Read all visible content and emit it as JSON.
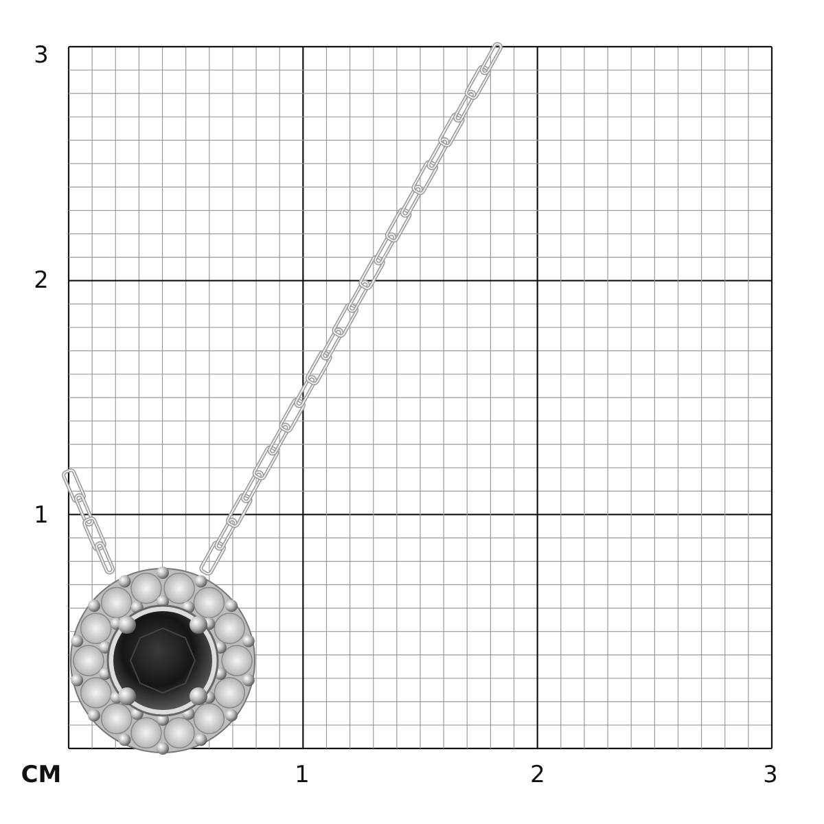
{
  "scale": {
    "unit_label": "CM",
    "x_ticks": [
      "1",
      "2",
      "3"
    ],
    "y_ticks": [
      "1",
      "2",
      "3"
    ],
    "range_cm": [
      0,
      3
    ],
    "minor_divisions_per_cm": 10,
    "major_line_color": "#111111",
    "minor_line_color": "#9a9a9a"
  },
  "product": {
    "type": "pendant necklace",
    "center_stone_color": "#1a1a1a",
    "metal_color": "#c8c8c8"
  }
}
